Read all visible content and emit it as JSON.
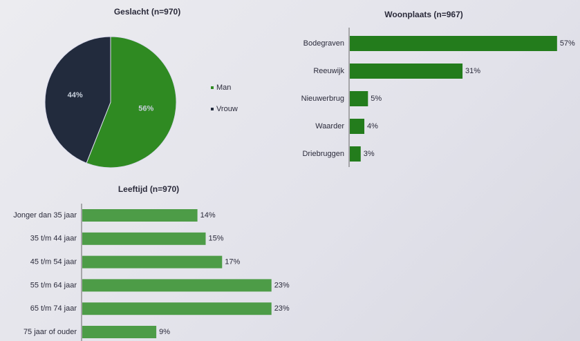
{
  "chart_data": [
    {
      "type": "pie",
      "title": "Geslacht (n=970)",
      "categories": [
        "Man",
        "Vrouw"
      ],
      "values": [
        56,
        44
      ],
      "value_labels": [
        "56%",
        "44%"
      ],
      "colors": [
        "#2f8a22",
        "#222b3d"
      ],
      "legend": "right"
    },
    {
      "type": "hbar",
      "title": "Woonplaats (n=967)",
      "categories": [
        "Bodegraven",
        "Reeuwijk",
        "Nieuwerbrug",
        "Waarder",
        "Driebruggen"
      ],
      "values": [
        57,
        31,
        5,
        4,
        3
      ],
      "value_labels": [
        "57%",
        "31%",
        "5%",
        "4%",
        "3%"
      ],
      "color": "#237c1c"
    },
    {
      "type": "hbar",
      "title": "Leeftijd (n=970)",
      "categories": [
        "Jonger dan 35 jaar",
        "35 t/m 44 jaar",
        "45 t/m 54 jaar",
        "55 t/m 64 jaar",
        "65 t/m 74 jaar",
        "75 jaar of ouder"
      ],
      "values": [
        14,
        15,
        17,
        23,
        23,
        9
      ],
      "value_labels": [
        "14%",
        "15%",
        "17%",
        "23%",
        "23%",
        "9%"
      ],
      "color": "#4d9c47"
    }
  ]
}
